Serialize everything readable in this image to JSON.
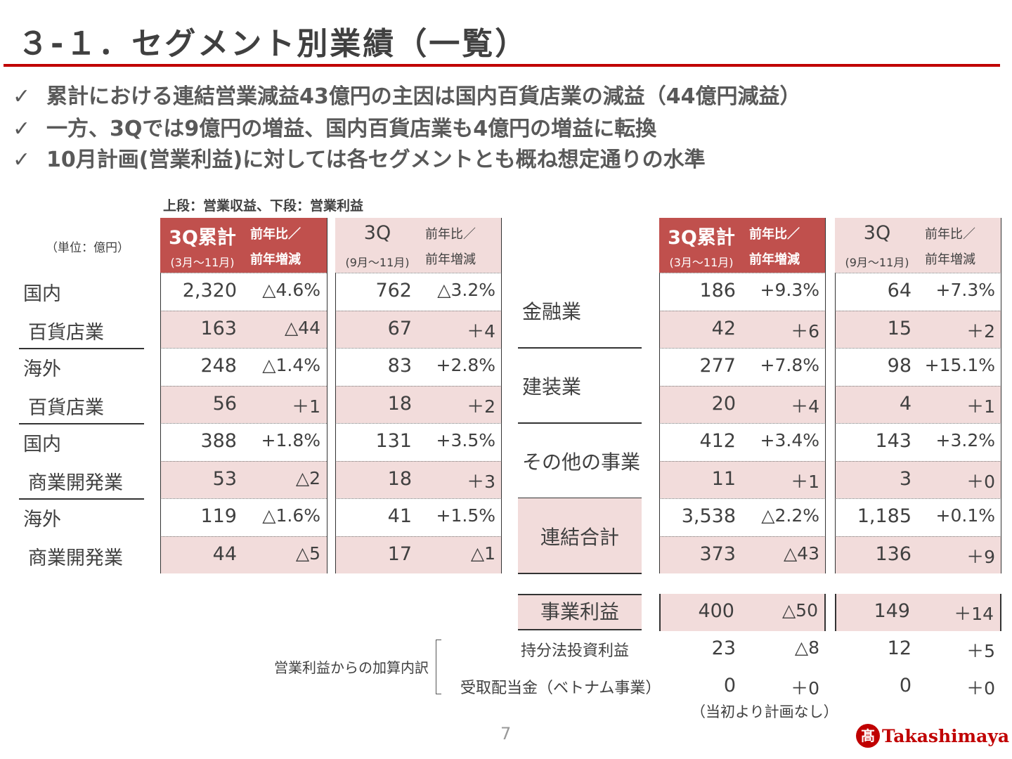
{
  "title": "３-１．セグメント別業績（一覧）",
  "bullets": [
    "累計における連結営業減益43億円の主因は国内百貨店業の減益（44億円減益）",
    "一方、3Qでは9億円の増益、国内百貨店業も4億円の増益に転換",
    "10月計画(営業利益)に対しては各セグメントとも概ね想定通りの水準"
  ],
  "check_icon": "✓",
  "note_top": "上段：営業収益、下段：営業利益",
  "unit": "（単位：億円）",
  "headers": {
    "cum": "3Q累計",
    "cum_period": "(3月～11月)",
    "q": "3Q",
    "q_period": "(9月～11月)",
    "change": "前年比／",
    "change2": "前年増減"
  },
  "colors": {
    "accent": "#c00000",
    "header_red": "#c0504d",
    "pink": "#f2dcdb"
  },
  "left_labels": [
    [
      "国内",
      "百貨店業"
    ],
    [
      "海外",
      "百貨店業"
    ],
    [
      "国内",
      "商業開発業"
    ],
    [
      "海外",
      "商業開発業"
    ]
  ],
  "left_rows": [
    [
      "2,320",
      "△4.6%",
      "762",
      "△3.2%"
    ],
    [
      "163",
      "△44",
      "67",
      "＋4"
    ],
    [
      "248",
      "△1.4%",
      "83",
      "+2.8%"
    ],
    [
      "56",
      "＋1",
      "18",
      "＋2"
    ],
    [
      "388",
      "+1.8%",
      "131",
      "+3.5%"
    ],
    [
      "53",
      "△2",
      "18",
      "＋3"
    ],
    [
      "119",
      "△1.6%",
      "41",
      "+1.5%"
    ],
    [
      "44",
      "△5",
      "17",
      "△1"
    ]
  ],
  "right_labels": [
    "金融業",
    "建装業",
    "その他の事業",
    "連結合計"
  ],
  "right_rows": [
    [
      "186",
      "+9.3%",
      "64",
      "+7.3%"
    ],
    [
      "42",
      "＋6",
      "15",
      "＋2"
    ],
    [
      "277",
      "+7.8%",
      "98",
      "+15.1%"
    ],
    [
      "20",
      "＋4",
      "4",
      "＋1"
    ],
    [
      "412",
      "+3.4%",
      "143",
      "+3.2%"
    ],
    [
      "11",
      "＋1",
      "3",
      "＋0"
    ],
    [
      "3,538",
      "△2.2%",
      "1,185",
      "+0.1%"
    ],
    [
      "373",
      "△43",
      "136",
      "＋9"
    ]
  ],
  "business_profit": {
    "label": "事業利益",
    "values": [
      "400",
      "△50",
      "149",
      "＋14"
    ]
  },
  "breakdown_label": "営業利益からの加算内訳",
  "equity": {
    "label": "持分法投資利益",
    "values": [
      "23",
      "△8",
      "12",
      "＋5"
    ]
  },
  "dividend": {
    "label": "受取配当金（ベトナム事業）",
    "values": [
      "0",
      "＋0",
      "0",
      "＋0"
    ]
  },
  "dividend_note": "（当初より計画なし）",
  "page_number": "7",
  "logo": "Takashimaya"
}
